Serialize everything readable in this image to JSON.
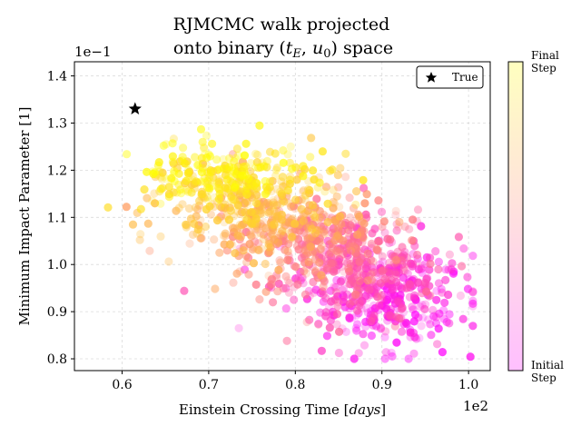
{
  "chart_data": {
    "type": "scatter",
    "title_line1": "RJMCMC walk projected",
    "title_line2_prefix": "onto binary (",
    "title_line2_math": "t",
    "title_line2_sub1": "E",
    "title_line2_sep": ", ",
    "title_line2_math2": "u",
    "title_line2_sub2": "0",
    "title_line2_suffix": ") space",
    "xlabel_prefix": "Einstein Crossing Time [",
    "xlabel_math": "days",
    "xlabel_suffix": "]",
    "ylabel": "Minimum Impact Parameter [1]",
    "x_offset_label": "1e2",
    "y_offset_label": "1e−1",
    "xlim": [
      0.545,
      1.025
    ],
    "ylim": [
      0.775,
      1.43
    ],
    "xticks": [
      0.6,
      0.7,
      0.8,
      0.9,
      1.0
    ],
    "xtick_labels": [
      "0.6",
      "0.7",
      "0.8",
      "0.9",
      "1.0"
    ],
    "yticks": [
      0.8,
      0.9,
      1.0,
      1.1,
      1.2,
      1.3,
      1.4
    ],
    "ytick_labels": [
      "0.8",
      "0.9",
      "1.0",
      "1.1",
      "1.2",
      "1.3",
      "1.4"
    ],
    "grid": true,
    "legend": {
      "placement": "top-right",
      "label": "True",
      "marker": "star"
    },
    "true_point": {
      "x": 0.615,
      "y": 1.33
    },
    "colorbar": {
      "top_label_line1": "Final",
      "top_label_line2": "Step",
      "bottom_label_line1": "Initial",
      "bottom_label_line2": "Step",
      "colors": [
        "#ff00ff",
        "#ffff00"
      ]
    },
    "walk_clusters": [
      {
        "t": 0.0,
        "cx": 0.92,
        "cy": 0.9,
        "sx": 0.045,
        "sy": 0.05
      },
      {
        "t": 0.4,
        "cx": 0.85,
        "cy": 1.02,
        "sx": 0.05,
        "sy": 0.055
      },
      {
        "t": 0.7,
        "cx": 0.76,
        "cy": 1.1,
        "sx": 0.055,
        "sy": 0.045
      },
      {
        "t": 1.0,
        "cx": 0.71,
        "cy": 1.215,
        "sx": 0.045,
        "sy": 0.03
      }
    ],
    "n_points": 1400
  }
}
